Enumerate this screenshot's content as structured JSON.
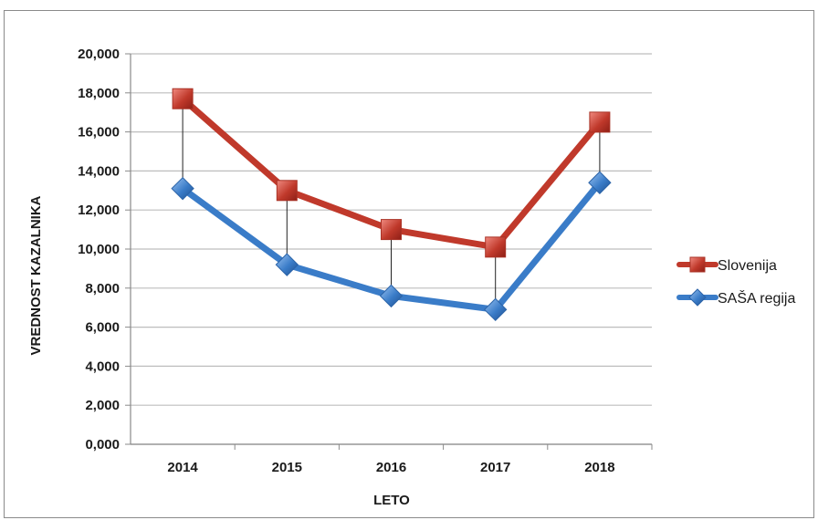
{
  "chart_data": {
    "type": "line",
    "title": "",
    "xlabel": "LETO",
    "ylabel": "VREDNOST KAZALNIKA",
    "categories": [
      "2014",
      "2015",
      "2016",
      "2017",
      "2018"
    ],
    "ylim": [
      0,
      20
    ],
    "yticks": [
      0,
      2,
      4,
      6,
      8,
      10,
      12,
      14,
      16,
      18,
      20
    ],
    "ytick_labels": [
      "0,000",
      "2,000",
      "4,000",
      "6,000",
      "8,000",
      "10,000",
      "12,000",
      "14,000",
      "16,000",
      "18,000",
      "20,000"
    ],
    "grid": true,
    "legend_position": "right",
    "drop_lines": true,
    "series": [
      {
        "name": "Slovenija",
        "values": [
          17.7,
          13.0,
          11.0,
          10.1,
          16.5
        ],
        "color": "#c0392b",
        "marker": "square"
      },
      {
        "name": "SAŠA regija",
        "values": [
          13.1,
          9.2,
          7.6,
          6.9,
          13.4
        ],
        "color": "#3a7cc8",
        "marker": "diamond"
      }
    ]
  }
}
